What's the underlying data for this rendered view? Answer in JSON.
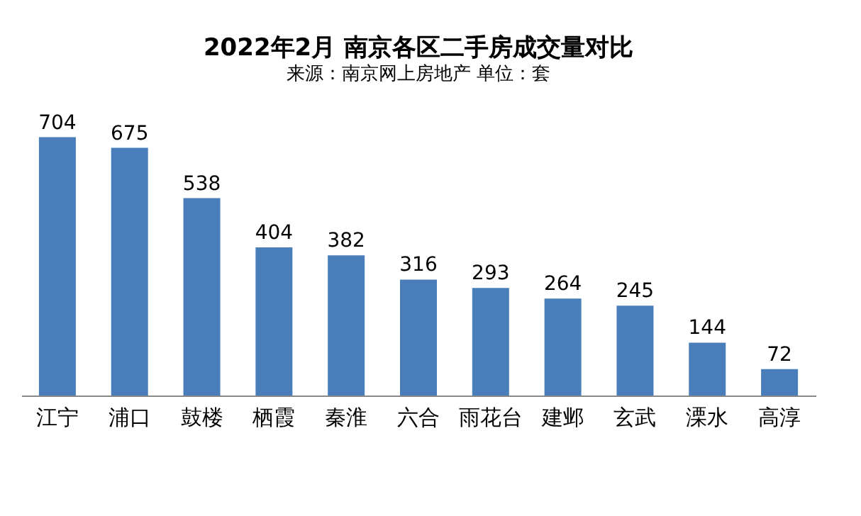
{
  "chart_data": {
    "type": "bar",
    "title": "2022年2月 南京各区二手房成交量对比",
    "subtitle": "来源：南京网上房地产  单位：套",
    "categories": [
      "江宁",
      "浦口",
      "鼓楼",
      "栖霞",
      "秦淮",
      "六合",
      "雨花台",
      "建邺",
      "玄武",
      "溧水",
      "高淳"
    ],
    "values": [
      704,
      675,
      538,
      404,
      382,
      316,
      293,
      264,
      245,
      144,
      72
    ],
    "color": "#4a7ebb",
    "data_labels": true
  }
}
